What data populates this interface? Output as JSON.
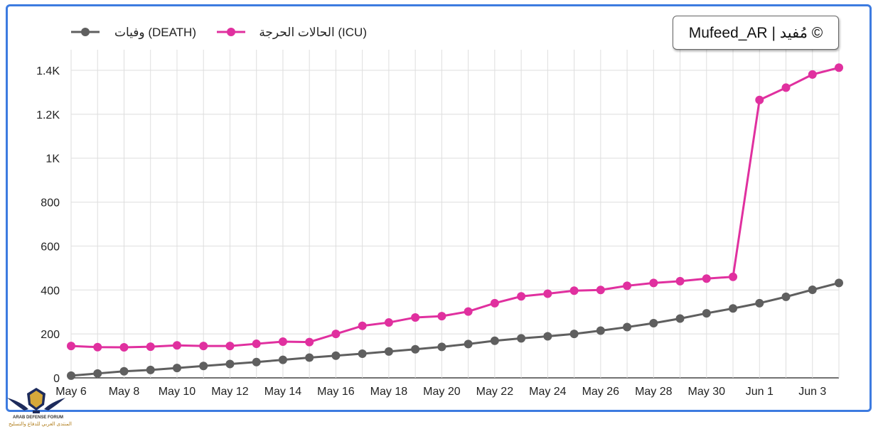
{
  "copyright": "© مُفيد | Mufeed_AR",
  "colors": {
    "icu": "#e0309f",
    "death": "#5f5f5f",
    "grid": "#dedede",
    "frame": "#3d7be0"
  },
  "chart_data": {
    "type": "line",
    "x": [
      "May 6",
      "May 7",
      "May 8",
      "May 9",
      "May 10",
      "May 11",
      "May 12",
      "May 13",
      "May 14",
      "May 15",
      "May 16",
      "May 17",
      "May 18",
      "May 19",
      "May 20",
      "May 21",
      "May 22",
      "May 23",
      "May 24",
      "May 25",
      "May 26",
      "May 27",
      "May 28",
      "May 29",
      "May 30",
      "May 31",
      "Jun 1",
      "Jun 2",
      "Jun 3",
      "Jun 4"
    ],
    "x_tick_labels": [
      "May 6",
      "May 8",
      "May 10",
      "May 12",
      "May 14",
      "May 16",
      "May 18",
      "May 20",
      "May 22",
      "May 24",
      "May 26",
      "May 28",
      "May 30",
      "Jun 1",
      "Jun 3"
    ],
    "y_tick_labels": [
      "0",
      "200",
      "400",
      "600",
      "800",
      "1K",
      "1.2K",
      "1.4K"
    ],
    "ylim": [
      0,
      1500
    ],
    "grid": true,
    "legend": "top-left",
    "series": [
      {
        "name": "الحالات الحرجة (ICU)",
        "color": "#e0309f",
        "values": [
          145,
          140,
          139,
          142,
          148,
          145,
          145,
          155,
          165,
          163,
          200,
          237,
          252,
          275,
          281,
          302,
          340,
          371,
          383,
          397,
          400,
          419,
          432,
          440,
          452,
          460,
          1265,
          1321,
          1381,
          1412
        ]
      },
      {
        "name": "وفيات (DEATH)",
        "color": "#5f5f5f",
        "values": [
          10,
          20,
          30,
          36,
          45,
          54,
          63,
          72,
          82,
          92,
          101,
          110,
          120,
          130,
          141,
          154,
          169,
          180,
          189,
          200,
          215,
          231,
          249,
          270,
          294,
          316,
          340,
          369,
          401,
          432
        ]
      }
    ]
  },
  "logo": {
    "line1": "ARAB DEFENSE FORUM",
    "line2": "المنتدى العربي للدفاع والتسليح"
  }
}
